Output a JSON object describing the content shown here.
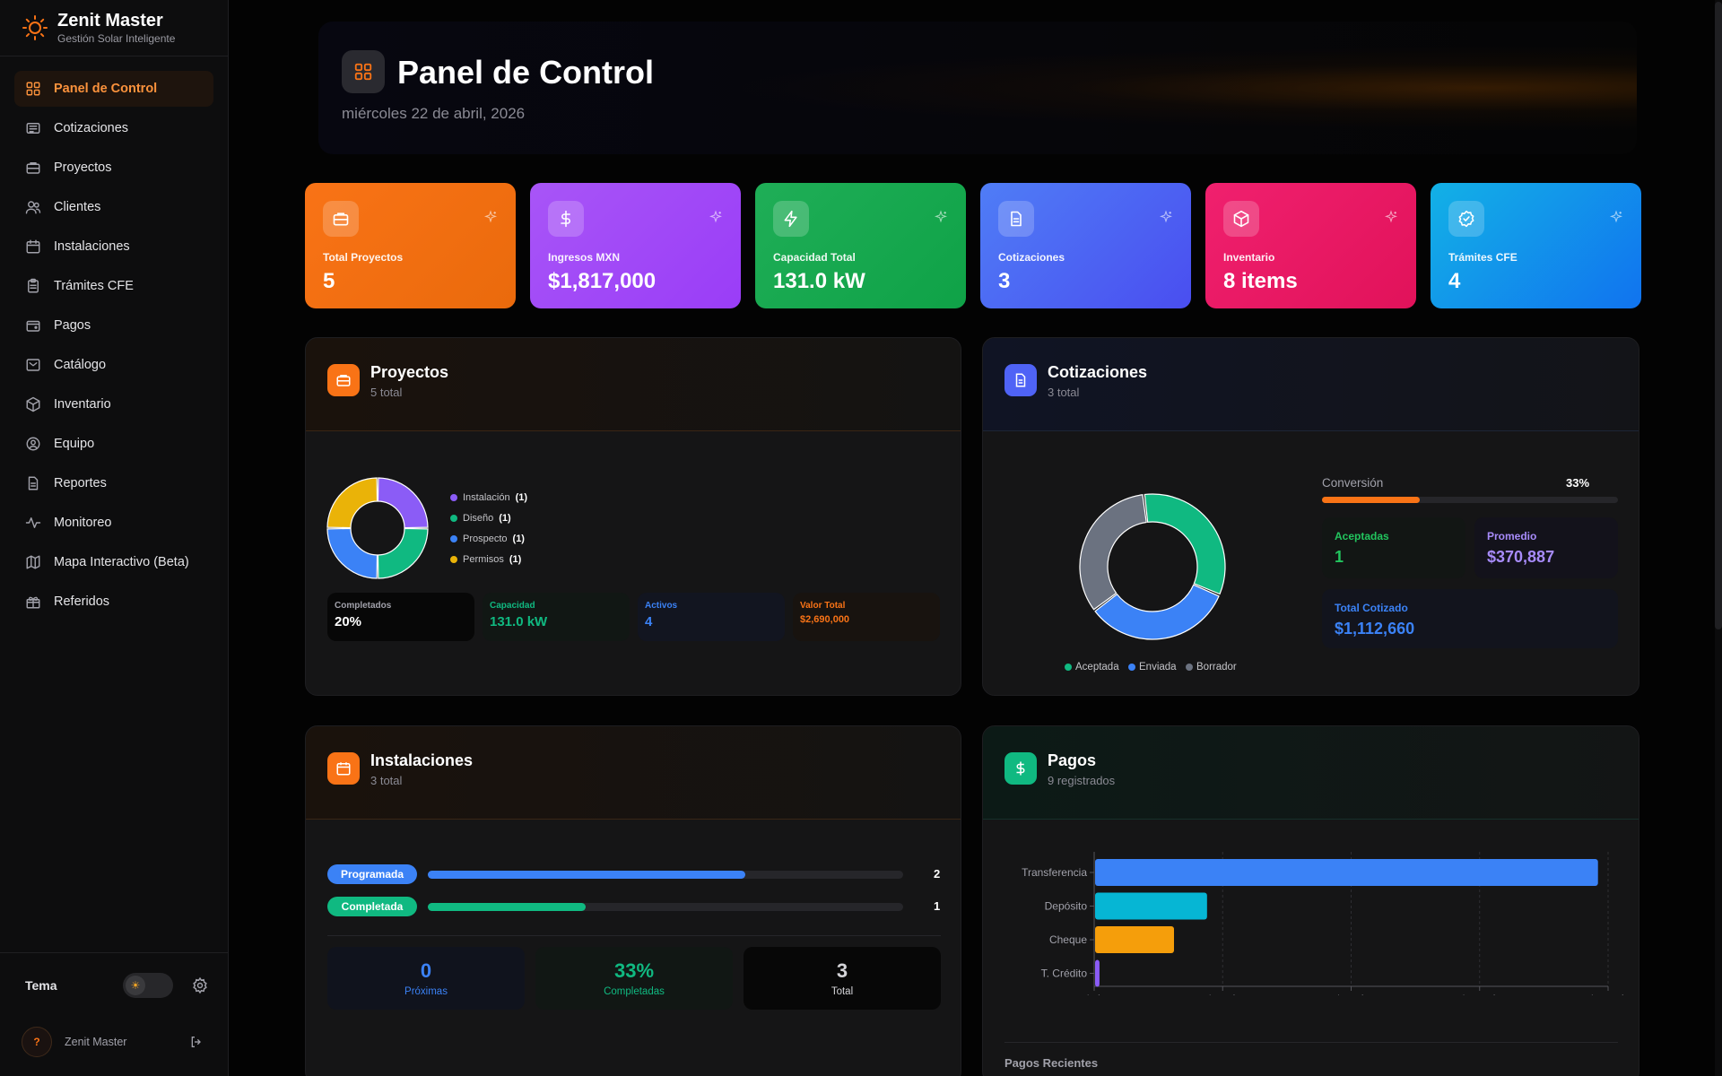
{
  "app": {
    "name": "Zenit Master",
    "tagline": "Gestión Solar Inteligente"
  },
  "sidebar": {
    "items": [
      {
        "label": "Panel de Control",
        "icon": "grid-icon",
        "active": true
      },
      {
        "label": "Cotizaciones",
        "icon": "receipt-icon"
      },
      {
        "label": "Proyectos",
        "icon": "briefcase-icon"
      },
      {
        "label": "Clientes",
        "icon": "users-icon"
      },
      {
        "label": "Instalaciones",
        "icon": "calendar-icon"
      },
      {
        "label": "Trámites CFE",
        "icon": "clipboard-icon"
      },
      {
        "label": "Pagos",
        "icon": "wallet-icon"
      },
      {
        "label": "Catálogo",
        "icon": "catalog-icon"
      },
      {
        "label": "Inventario",
        "icon": "box-icon"
      },
      {
        "label": "Equipo",
        "icon": "user-circle-icon"
      },
      {
        "label": "Reportes",
        "icon": "report-icon"
      },
      {
        "label": "Monitoreo",
        "icon": "activity-icon"
      },
      {
        "label": "Mapa Interactivo (Beta)",
        "icon": "map-icon"
      },
      {
        "label": "Referidos",
        "icon": "gift-icon"
      }
    ],
    "theme_label": "Tema",
    "user_name": "Zenit Master",
    "avatar_text": "?"
  },
  "header": {
    "title": "Panel de Control",
    "date": "miércoles 22 de abril, 2026"
  },
  "stats": [
    {
      "label": "Total Proyectos",
      "value": "5",
      "icon": "briefcase-icon",
      "color": "#f97316"
    },
    {
      "label": "Ingresos MXN",
      "value": "$1,817,000",
      "icon": "dollar-icon",
      "color": "#a855f7"
    },
    {
      "label": "Capacidad Total",
      "value": "131.0 kW",
      "icon": "bolt-icon",
      "color": "#16a34a"
    },
    {
      "label": "Cotizaciones",
      "value": "3",
      "icon": "document-icon",
      "color": "#4f63f6"
    },
    {
      "label": "Inventario",
      "value": "8 items",
      "icon": "box-icon",
      "color": "#ec1566"
    },
    {
      "label": "Trámites CFE",
      "value": "4",
      "icon": "badge-check-icon",
      "color": "#0ea5e9"
    }
  ],
  "proyectos": {
    "title": "Proyectos",
    "subtitle": "5 total",
    "legend": [
      {
        "label": "Instalación",
        "count": "(1)",
        "color": "#8b5cf6"
      },
      {
        "label": "Diseño",
        "count": "(1)",
        "color": "#10b981"
      },
      {
        "label": "Prospecto",
        "count": "(1)",
        "color": "#3b82f6"
      },
      {
        "label": "Permisos",
        "count": "(1)",
        "color": "#eab308"
      }
    ],
    "mini": [
      {
        "label": "Completados",
        "value": "20%"
      },
      {
        "label": "Capacidad",
        "value": "131.0 kW"
      },
      {
        "label": "Activos",
        "value": "4"
      },
      {
        "label": "Valor Total",
        "value": "$2,690,000"
      }
    ]
  },
  "cotizaciones": {
    "title": "Cotizaciones",
    "subtitle": "3 total",
    "legend": [
      {
        "label": "Aceptada",
        "color": "#10b981"
      },
      {
        "label": "Enviada",
        "color": "#3b82f6"
      },
      {
        "label": "Borrador",
        "color": "#6b7280"
      }
    ],
    "conversion_label": "Conversión",
    "conversion_value": "33%",
    "conversion_fraction": 0.33,
    "aceptadas_label": "Aceptadas",
    "aceptadas_value": "1",
    "promedio_label": "Promedio",
    "promedio_value": "$370,887",
    "total_label": "Total Cotizado",
    "total_value": "$1,112,660"
  },
  "instalaciones": {
    "title": "Instalaciones",
    "subtitle": "3 total",
    "rows": [
      {
        "label": "Programada",
        "count": "2",
        "fraction": 0.667,
        "color": "#3b82f6"
      },
      {
        "label": "Completada",
        "count": "1",
        "fraction": 0.333,
        "color": "#10b981"
      }
    ],
    "boxes": [
      {
        "value": "0",
        "label": "Próximas"
      },
      {
        "value": "33%",
        "label": "Completadas"
      },
      {
        "value": "3",
        "label": "Total"
      }
    ]
  },
  "pagos": {
    "title": "Pagos",
    "subtitle": "9 registrados",
    "recent_label": "Pagos Recientes"
  },
  "chart_data": [
    {
      "type": "pie",
      "categories": [
        "Instalación",
        "Diseño",
        "Prospecto",
        "Permisos"
      ],
      "values": [
        1,
        1,
        1,
        1
      ],
      "colors": [
        "#8b5cf6",
        "#10b981",
        "#3b82f6",
        "#eab308"
      ]
    },
    {
      "type": "pie",
      "categories": [
        "Aceptada",
        "Enviada",
        "Borrador"
      ],
      "values": [
        1,
        1,
        1
      ],
      "colors": [
        "#10b981",
        "#3b82f6",
        "#6b7280"
      ]
    },
    {
      "type": "bar",
      "orientation": "horizontal",
      "categories": [
        "Transferencia",
        "Depósito",
        "Cheque",
        "T. Crédito"
      ],
      "values": [
        1370000,
        305000,
        215000,
        12000
      ],
      "colors": [
        "#3b82f6",
        "#06b6d4",
        "#f59e0b",
        "#8b5cf6"
      ],
      "xlim": [
        0,
        1400000
      ],
      "xticks": [
        "$0k",
        "$350k",
        "$700k",
        "$1050k",
        "$1400k"
      ],
      "grid": true
    }
  ]
}
